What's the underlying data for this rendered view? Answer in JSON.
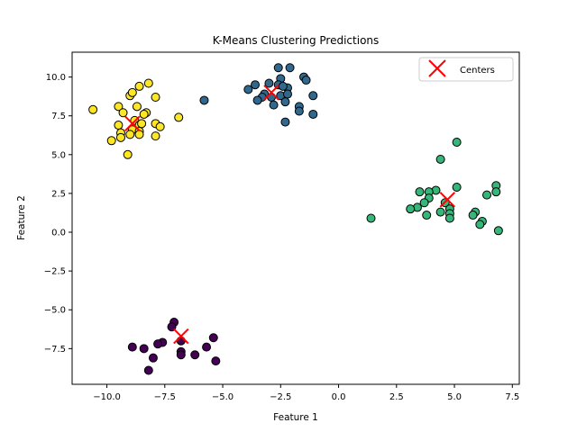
{
  "chart_data": {
    "type": "scatter",
    "title": "K-Means Clustering Predictions",
    "xlabel": "Feature 1",
    "ylabel": "Feature 2",
    "xlim": [
      -11.5,
      7.8
    ],
    "ylim": [
      -9.8,
      11.6
    ],
    "xticks": [
      -10.0,
      -7.5,
      -5.0,
      -2.5,
      0.0,
      2.5,
      5.0,
      7.5
    ],
    "xtick_labels": [
      "−10.0",
      "−7.5",
      "−5.0",
      "−2.5",
      "0.0",
      "2.5",
      "5.0",
      "7.5"
    ],
    "yticks": [
      -7.5,
      -5.0,
      -2.5,
      0.0,
      2.5,
      5.0,
      7.5,
      10.0
    ],
    "ytick_labels": [
      "−7.5",
      "−5.0",
      "−2.5",
      "0.0",
      "2.5",
      "5.0",
      "7.5",
      "10.0"
    ],
    "grid": false,
    "legend_position": "top-right",
    "legend": [
      {
        "label": "Centers",
        "marker": "x",
        "color": "#ff0000"
      }
    ],
    "clusters": [
      {
        "color": "#440154",
        "points": [
          [
            -7.1,
            -5.8
          ],
          [
            -7.2,
            -6.1
          ],
          [
            -6.8,
            -7.0
          ],
          [
            -7.6,
            -7.1
          ],
          [
            -7.8,
            -7.2
          ],
          [
            -8.9,
            -7.4
          ],
          [
            -8.4,
            -7.5
          ],
          [
            -6.8,
            -7.7
          ],
          [
            -6.8,
            -7.9
          ],
          [
            -6.2,
            -7.9
          ],
          [
            -8.0,
            -8.1
          ],
          [
            -5.7,
            -7.4
          ],
          [
            -5.4,
            -6.8
          ],
          [
            -5.3,
            -8.3
          ],
          [
            -8.2,
            -8.9
          ]
        ]
      },
      {
        "color": "#31688e",
        "points": [
          [
            -2.6,
            10.6
          ],
          [
            -2.1,
            10.6
          ],
          [
            -1.5,
            10.0
          ],
          [
            -1.4,
            9.8
          ],
          [
            -2.5,
            9.9
          ],
          [
            -3.9,
            9.2
          ],
          [
            -3.6,
            9.5
          ],
          [
            -3.0,
            9.6
          ],
          [
            -2.6,
            9.5
          ],
          [
            -2.2,
            9.3
          ],
          [
            -2.4,
            9.4
          ],
          [
            -3.2,
            8.9
          ],
          [
            -2.9,
            8.7
          ],
          [
            -2.5,
            8.8
          ],
          [
            -2.2,
            8.9
          ],
          [
            -1.1,
            8.8
          ],
          [
            -3.3,
            8.7
          ],
          [
            -3.5,
            8.5
          ],
          [
            -2.3,
            8.4
          ],
          [
            -2.8,
            8.2
          ],
          [
            -1.7,
            8.1
          ],
          [
            -1.7,
            7.8
          ],
          [
            -1.1,
            7.6
          ],
          [
            -2.3,
            7.1
          ],
          [
            -5.8,
            8.5
          ]
        ]
      },
      {
        "color": "#35b779",
        "points": [
          [
            5.1,
            5.8
          ],
          [
            4.4,
            4.7
          ],
          [
            6.8,
            3.0
          ],
          [
            5.1,
            2.9
          ],
          [
            4.2,
            2.7
          ],
          [
            3.9,
            2.6
          ],
          [
            3.5,
            2.6
          ],
          [
            6.8,
            2.6
          ],
          [
            6.4,
            2.4
          ],
          [
            3.9,
            2.2
          ],
          [
            3.7,
            1.9
          ],
          [
            4.6,
            1.9
          ],
          [
            3.4,
            1.6
          ],
          [
            4.8,
            1.5
          ],
          [
            3.1,
            1.5
          ],
          [
            4.4,
            1.3
          ],
          [
            4.8,
            1.2
          ],
          [
            5.9,
            1.3
          ],
          [
            3.8,
            1.1
          ],
          [
            5.8,
            1.1
          ],
          [
            1.4,
            0.9
          ],
          [
            4.8,
            0.9
          ],
          [
            6.2,
            0.7
          ],
          [
            6.1,
            0.5
          ],
          [
            6.9,
            0.1
          ]
        ]
      },
      {
        "color": "#fde725",
        "points": [
          [
            -10.6,
            7.9
          ],
          [
            -9.5,
            8.1
          ],
          [
            -9.0,
            8.8
          ],
          [
            -8.9,
            9.0
          ],
          [
            -8.6,
            9.4
          ],
          [
            -8.2,
            9.6
          ],
          [
            -7.9,
            8.7
          ],
          [
            -8.7,
            8.1
          ],
          [
            -9.3,
            7.7
          ],
          [
            -8.3,
            7.7
          ],
          [
            -8.4,
            7.6
          ],
          [
            -6.9,
            7.4
          ],
          [
            -8.8,
            7.2
          ],
          [
            -8.6,
            6.9
          ],
          [
            -9.5,
            6.9
          ],
          [
            -7.9,
            7.0
          ],
          [
            -8.5,
            7.0
          ],
          [
            -7.7,
            6.8
          ],
          [
            -8.9,
            6.6
          ],
          [
            -8.6,
            6.5
          ],
          [
            -9.4,
            6.4
          ],
          [
            -9.0,
            6.3
          ],
          [
            -8.6,
            6.3
          ],
          [
            -7.9,
            6.2
          ],
          [
            -9.4,
            6.1
          ],
          [
            -9.8,
            5.9
          ],
          [
            -9.1,
            5.0
          ]
        ]
      }
    ],
    "centers": [
      [
        -6.8,
        -6.7
      ],
      [
        -2.9,
        9.0
      ],
      [
        4.7,
        2.1
      ],
      [
        -8.9,
        7.0
      ]
    ],
    "center_color": "#ff0000"
  }
}
